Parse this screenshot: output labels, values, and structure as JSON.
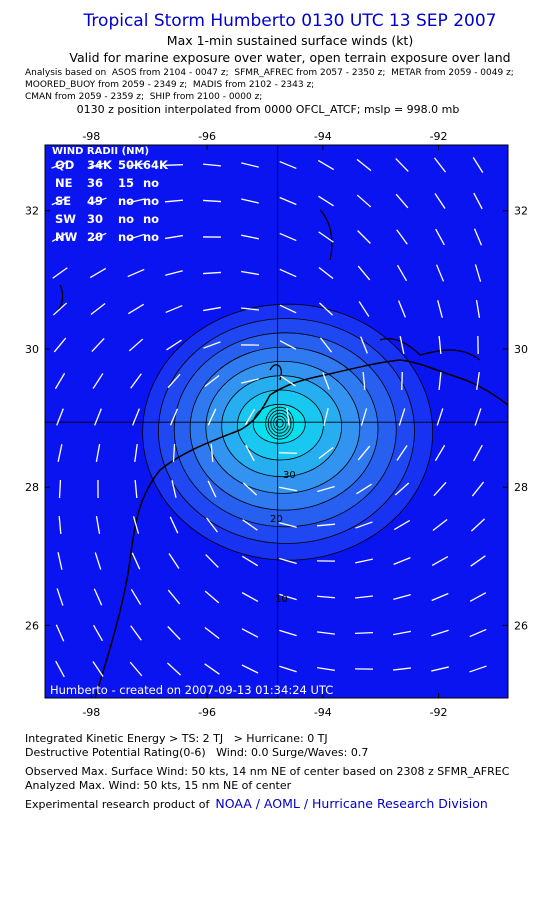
{
  "header": {
    "title": "Tropical Storm Humberto 0130 UTC 13 SEP 2007",
    "subtitle": "Max 1-min sustained surface winds (kt)",
    "validity": "Valid for marine exposure over water, open terrain exposure over land",
    "analysis": [
      "Analysis based on  ASOS from 2104 - 0047 z;  SFMR_AFREC from 2057 - 2350 z;  METAR from 2059 - 0049 z;",
      "MOORED_BUOY from 2059 - 2349 z;  MADIS from 2102 - 2343 z;",
      "CMAN from 2059 - 2359 z;  SHIP from 2100 - 0000 z;"
    ],
    "position": "0130 z position interpolated from 0000 OFCL_ATCF; mslp = 998.0 mb"
  },
  "map": {
    "xlim": [
      -98.8,
      -90.8
    ],
    "ylim": [
      24.95,
      32.95
    ],
    "xticks": [
      -98,
      -96,
      -94,
      -92
    ],
    "yticks": [
      26,
      28,
      30,
      32
    ],
    "center": [
      -94.78,
      28.94
    ],
    "contour_labels": [
      "10",
      "20",
      "30"
    ],
    "credit": "Humberto - created on 2007-09-13 01:34:24 UTC",
    "wind_radii": {
      "title": "WIND RADII (NM)",
      "header": [
        "QD",
        "34K",
        "50K",
        "64K"
      ],
      "rows": [
        [
          "NE",
          "36",
          "15",
          "no"
        ],
        [
          "SE",
          "49",
          "no",
          "no"
        ],
        [
          "SW",
          "30",
          "no",
          "no"
        ],
        [
          "NW",
          "20",
          "no",
          "no"
        ]
      ]
    }
  },
  "footer": {
    "lines": [
      "Integrated Kinetic Energy > TS: 2 TJ   > Hurricane: 0 TJ",
      "Destructive Potential Rating(0-6)   Wind: 0.0 Surge/Waves: 0.7",
      "Observed Max. Surface Wind: 50 kts, 14 nm NE of center based on 2308 z SFMR_AFREC",
      "Analyzed Max. Wind: 50 kts, 15 nm NE of center"
    ],
    "credit_prefix": "Experimental research product of",
    "credit_link": "NOAA / AOML / Hurricane Research Division"
  }
}
